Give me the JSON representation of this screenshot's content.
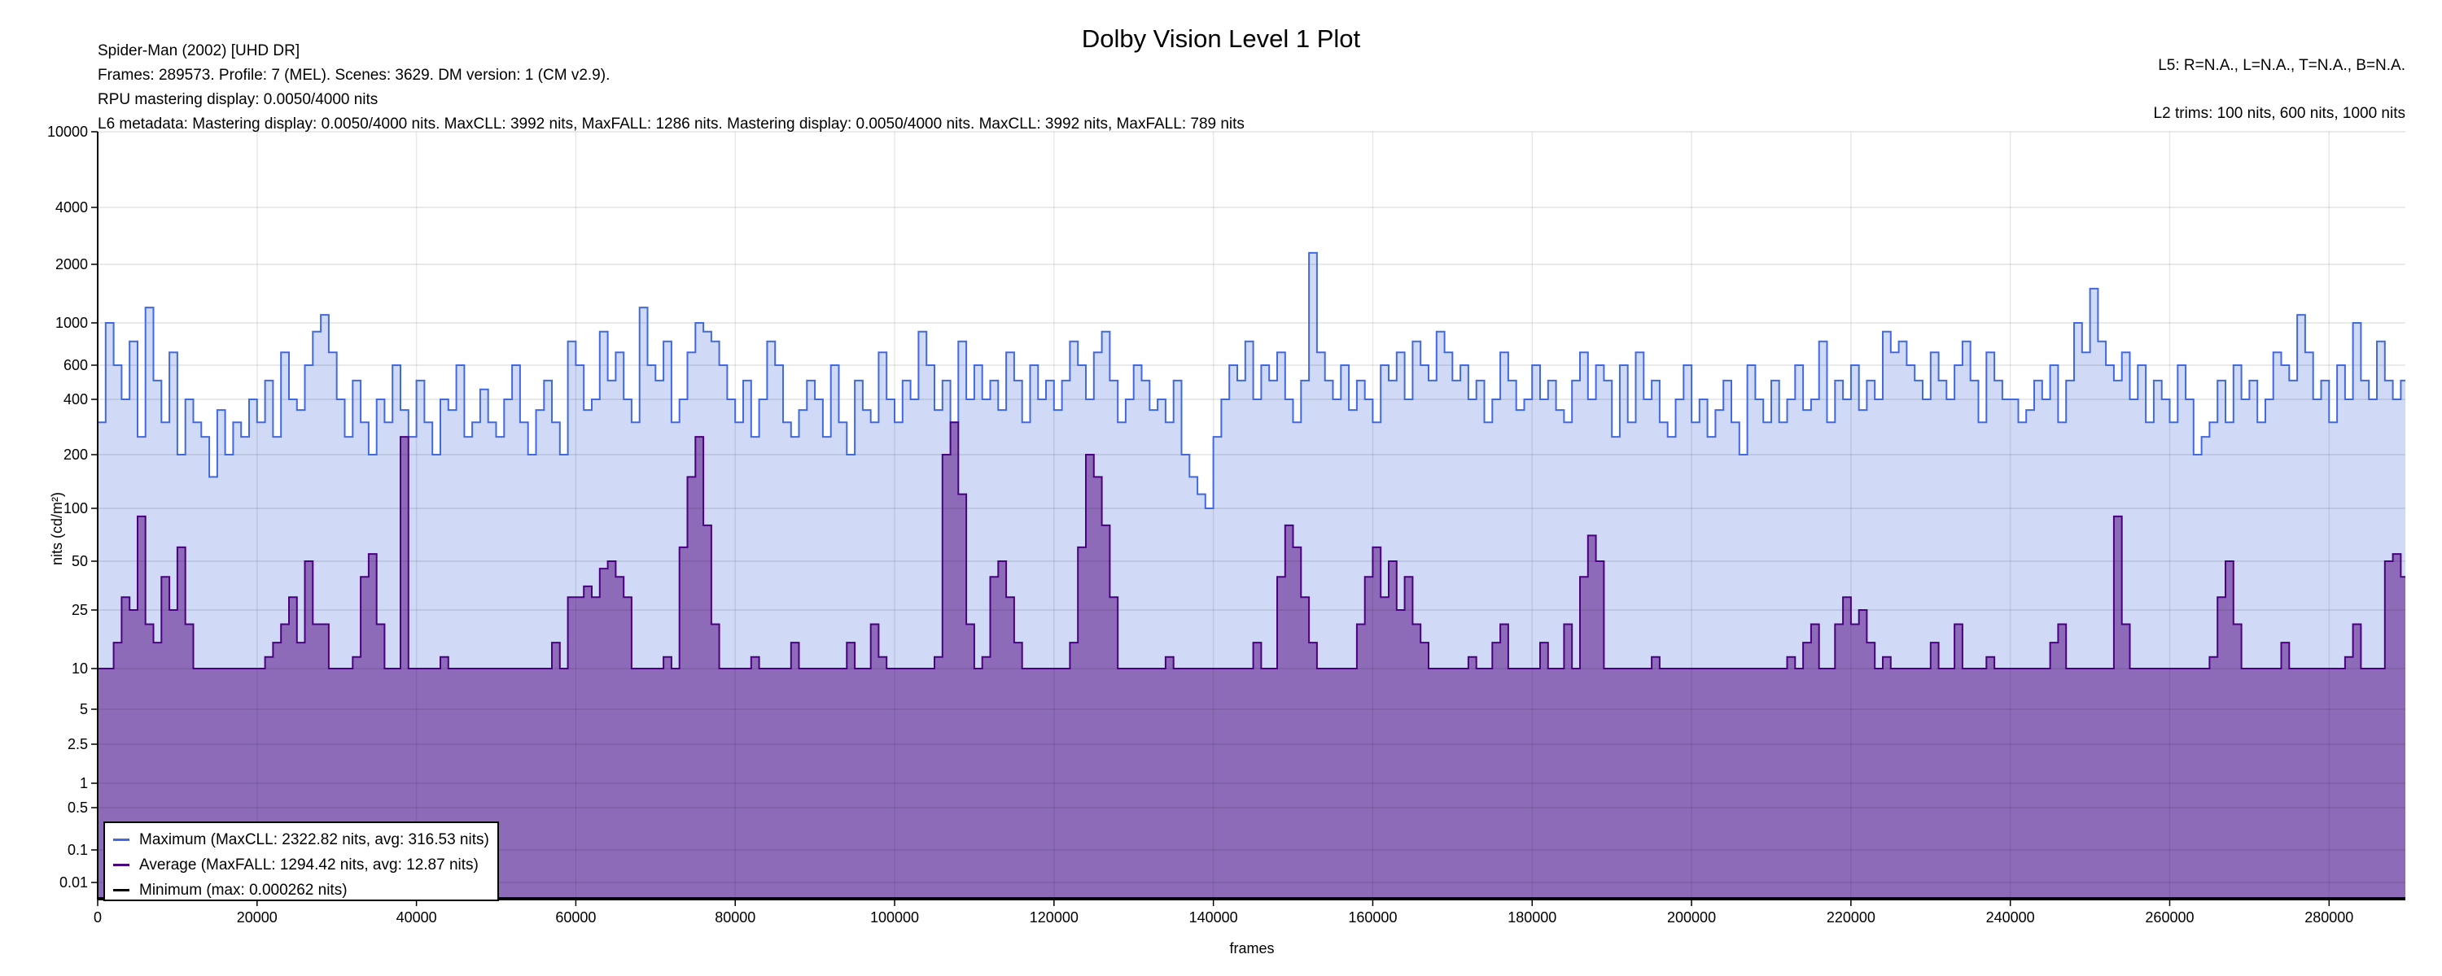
{
  "header": {
    "title": "Dolby Vision Level 1 Plot",
    "line1": "Spider-Man (2002) [UHD DR]",
    "line2": "Frames: 289573. Profile: 7 (MEL). Scenes: 3629. DM version: 1 (CM v2.9).",
    "line3": "RPU mastering display: 0.0050/4000 nits",
    "line4": "L6 metadata: Mastering display: 0.0050/4000 nits. MaxCLL: 3992 nits, MaxFALL: 1286 nits. Mastering display: 0.0050/4000 nits. MaxCLL: 3992 nits, MaxFALL: 789 nits",
    "right1": "L5: R=N.A., L=N.A., T=N.A., B=N.A.",
    "right2": "L2 trims: 100 nits, 600 nits, 1000 nits"
  },
  "colors": {
    "maximum": "#4169e1",
    "maximum_fill": "#d0d9f6",
    "average": "#4b0082",
    "average_fill": "#8e6bb9",
    "minimum": "#000000"
  },
  "chart_data": {
    "type": "area",
    "title": "Dolby Vision Level 1 Plot",
    "xlabel": "frames",
    "ylabel": "nits (cd/m²)",
    "xlim": [
      0,
      289573
    ],
    "ylim": [
      0,
      10000
    ],
    "x_ticks": [
      "0",
      "20000",
      "40000",
      "60000",
      "80000",
      "100000",
      "120000",
      "140000",
      "160000",
      "180000",
      "200000",
      "220000",
      "240000",
      "260000",
      "280000"
    ],
    "x_tick_values": [
      0,
      20000,
      40000,
      60000,
      80000,
      100000,
      120000,
      140000,
      160000,
      180000,
      200000,
      220000,
      240000,
      260000,
      280000
    ],
    "y_ticks": [
      "10000",
      "4000",
      "2000",
      "1000",
      "600",
      "400",
      "200",
      "100",
      "50",
      "25",
      "10",
      "5",
      "2.5",
      "1",
      "0.5",
      "0.1",
      "0.01"
    ],
    "y_tick_values": [
      10000,
      4000,
      2000,
      1000,
      600,
      400,
      200,
      100,
      50,
      25,
      10,
      5,
      2.5,
      1,
      0.5,
      0.1,
      0.01
    ],
    "grid": true,
    "legend_position": "bottom-left",
    "x_step_frames": 1000,
    "series": [
      {
        "name": "Maximum",
        "legend": "Maximum (MaxCLL: 2322.82 nits, avg: 316.53 nits)",
        "values": [
          300,
          1000,
          600,
          400,
          800,
          250,
          1200,
          500,
          300,
          700,
          200,
          400,
          300,
          250,
          150,
          350,
          200,
          300,
          250,
          400,
          300,
          500,
          250,
          700,
          400,
          350,
          600,
          900,
          1100,
          700,
          400,
          250,
          500,
          300,
          200,
          400,
          300,
          600,
          350,
          250,
          500,
          300,
          200,
          400,
          350,
          600,
          250,
          300,
          450,
          300,
          250,
          400,
          600,
          300,
          200,
          350,
          500,
          300,
          200,
          800,
          600,
          350,
          400,
          900,
          500,
          700,
          400,
          300,
          1200,
          600,
          500,
          800,
          300,
          400,
          700,
          1000,
          900,
          800,
          600,
          400,
          300,
          500,
          250,
          400,
          800,
          600,
          300,
          250,
          350,
          500,
          400,
          250,
          600,
          300,
          200,
          500,
          350,
          300,
          700,
          400,
          300,
          500,
          400,
          900,
          600,
          350,
          500,
          300,
          800,
          400,
          600,
          400,
          500,
          350,
          700,
          500,
          300,
          600,
          400,
          500,
          350,
          500,
          800,
          600,
          400,
          700,
          900,
          500,
          300,
          400,
          600,
          500,
          350,
          400,
          300,
          500,
          200,
          150,
          120,
          100,
          250,
          400,
          600,
          500,
          800,
          400,
          600,
          500,
          700,
          400,
          300,
          500,
          2300,
          700,
          500,
          400,
          600,
          350,
          500,
          400,
          300,
          600,
          500,
          700,
          400,
          800,
          600,
          500,
          900,
          700,
          500,
          600,
          400,
          500,
          300,
          400,
          700,
          500,
          350,
          400,
          600,
          400,
          500,
          350,
          300,
          500,
          700,
          400,
          600,
          500,
          250,
          600,
          300,
          700,
          400,
          500,
          300,
          250,
          400,
          600,
          300,
          400,
          250,
          350,
          500,
          300,
          200,
          600,
          400,
          300,
          500,
          300,
          400,
          600,
          350,
          400,
          800,
          300,
          500,
          400,
          600,
          350,
          500,
          400,
          900,
          700,
          800,
          600,
          500,
          400,
          700,
          500,
          400,
          600,
          800,
          500,
          300,
          700,
          500,
          400,
          400,
          300,
          350,
          500,
          400,
          600,
          300,
          500,
          1000,
          700,
          1500,
          800,
          600,
          500,
          700,
          400,
          600,
          300,
          500,
          400,
          300,
          600,
          400,
          200,
          250,
          300,
          500,
          300,
          600,
          400,
          500,
          300,
          400,
          700,
          600,
          500,
          1100,
          700,
          400,
          500,
          300,
          600,
          400,
          1000,
          500,
          400,
          800,
          500,
          400,
          500
        ]
      },
      {
        "name": "Average",
        "legend": "Average (MaxFALL: 1294.42 nits, avg: 12.87 nits)",
        "values": [
          10,
          10,
          15,
          30,
          25,
          90,
          20,
          15,
          40,
          25,
          60,
          20,
          10,
          10,
          10,
          10,
          10,
          10,
          10,
          10,
          10,
          12,
          15,
          20,
          30,
          15,
          50,
          20,
          20,
          10,
          10,
          10,
          12,
          40,
          55,
          20,
          10,
          10,
          250,
          10,
          10,
          10,
          10,
          12,
          10,
          10,
          10,
          10,
          10,
          10,
          10,
          10,
          10,
          10,
          10,
          10,
          10,
          15,
          10,
          30,
          30,
          35,
          30,
          45,
          50,
          40,
          30,
          10,
          10,
          10,
          10,
          12,
          10,
          60,
          150,
          250,
          80,
          20,
          10,
          10,
          10,
          10,
          12,
          10,
          10,
          10,
          10,
          15,
          10,
          10,
          10,
          10,
          10,
          10,
          15,
          10,
          10,
          20,
          12,
          10,
          10,
          10,
          10,
          10,
          10,
          12,
          200,
          300,
          120,
          20,
          10,
          12,
          40,
          50,
          30,
          15,
          10,
          10,
          10,
          10,
          10,
          10,
          15,
          60,
          200,
          150,
          80,
          30,
          10,
          10,
          10,
          10,
          10,
          10,
          12,
          10,
          10,
          10,
          10,
          10,
          10,
          10,
          10,
          10,
          10,
          15,
          10,
          10,
          40,
          80,
          60,
          30,
          15,
          10,
          10,
          10,
          10,
          10,
          20,
          40,
          60,
          30,
          50,
          25,
          40,
          20,
          15,
          10,
          10,
          10,
          10,
          10,
          12,
          10,
          10,
          15,
          20,
          10,
          10,
          10,
          10,
          15,
          10,
          10,
          20,
          10,
          40,
          70,
          50,
          10,
          10,
          10,
          10,
          10,
          10,
          12,
          10,
          10,
          10,
          10,
          10,
          10,
          10,
          10,
          10,
          10,
          10,
          10,
          10,
          10,
          10,
          10,
          12,
          10,
          15,
          20,
          10,
          10,
          20,
          30,
          20,
          25,
          15,
          10,
          12,
          10,
          10,
          10,
          10,
          10,
          15,
          10,
          10,
          20,
          10,
          10,
          10,
          12,
          10,
          10,
          10,
          10,
          10,
          10,
          10,
          15,
          20,
          10,
          10,
          10,
          10,
          10,
          10,
          90,
          20,
          10,
          10,
          10,
          10,
          10,
          10,
          10,
          10,
          10,
          10,
          12,
          30,
          50,
          20,
          10,
          10,
          10,
          10,
          10,
          15,
          10,
          10,
          10,
          10,
          10,
          10,
          10,
          12,
          20,
          10,
          10,
          10,
          50,
          55,
          40
        ]
      },
      {
        "name": "Minimum",
        "legend": "Minimum (max: 0.000262 nits)",
        "max": 0.000262
      }
    ]
  }
}
